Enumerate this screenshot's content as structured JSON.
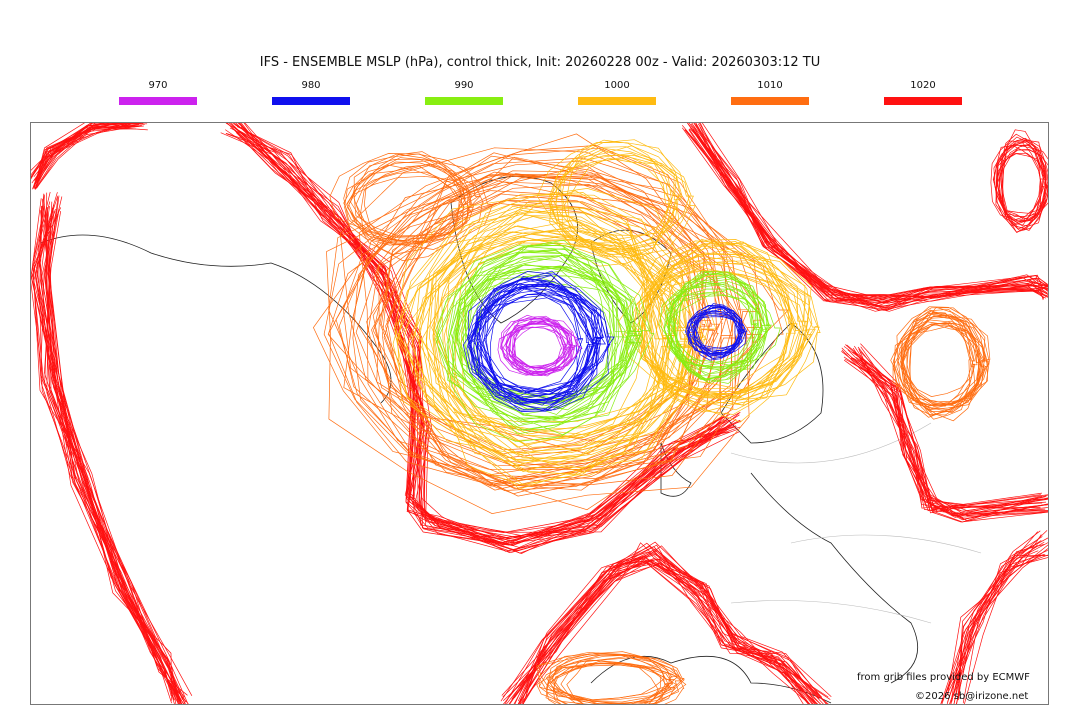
{
  "title": "IFS - ENSEMBLE MSLP (hPa), control thick, Init: 20260228 00z - Valid: 20260303:12 TU",
  "legend": [
    {
      "label": "970",
      "color": "#cc22ee"
    },
    {
      "label": "980",
      "color": "#1010ee"
    },
    {
      "label": "990",
      "color": "#88ee11"
    },
    {
      "label": "1000",
      "color": "#ffbb11"
    },
    {
      "label": "1010",
      "color": "#ff6d11"
    },
    {
      "label": "1020",
      "color": "#ff1111"
    }
  ],
  "credits": {
    "source": "from grib files provided by ECMWF",
    "copyright": "©2026 sb@irizone.net"
  }
}
